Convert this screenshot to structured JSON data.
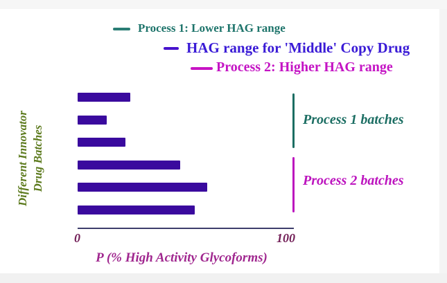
{
  "page": {
    "background": "#ffffff",
    "band_color_top": "#f6f6f6",
    "band_color_bottom": "#f1f1f1"
  },
  "legend": {
    "items": [
      {
        "label": "Process 1: Lower HAG range",
        "color": "#1e746b",
        "dash_color": "#2a7d74"
      },
      {
        "label": "HAG range for 'Middle' Copy Drug",
        "color": "#3a1bd6",
        "dash_color": "#4712cd"
      },
      {
        "label": "Process 2: Higher HAG range",
        "color": "#c414c4",
        "dash_color": "#c713c4"
      }
    ]
  },
  "chart_data": {
    "type": "bar",
    "orientation": "horizontal",
    "title": "",
    "xlabel": "P (% High Activity Glycoforms)",
    "ylabel": "Different Innovator Drug Batches",
    "xlim": [
      0,
      100
    ],
    "xticks": [
      0,
      100
    ],
    "grid": false,
    "bar_color": "#3a0a9e",
    "values": [
      25,
      14,
      23,
      49,
      62,
      56
    ],
    "groups": [
      {
        "name": "Process 1 batches",
        "bar_indexes": [
          0,
          1,
          2
        ],
        "color": "#1c6e63"
      },
      {
        "name": "Process 2 batches",
        "bar_indexes": [
          3,
          4,
          5
        ],
        "color": "#bc14be"
      }
    ]
  },
  "axes": {
    "tick_0": "0",
    "tick_100": "100",
    "xlabel": "P (% High Activity Glycoforms)",
    "tick_color": "#732058",
    "xlabel_color": "#a0278f",
    "axis_line_color": "#3d3d6b"
  },
  "ylabel_block": {
    "line1": "Different Innovator",
    "line2": "Drug Batches",
    "color": "#5c7a1d"
  },
  "annotations": {
    "group1_label": "Process 1 batches",
    "group1_color": "#1c6e63",
    "group2_label": "Process 2 batches",
    "group2_color": "#bc14be"
  }
}
